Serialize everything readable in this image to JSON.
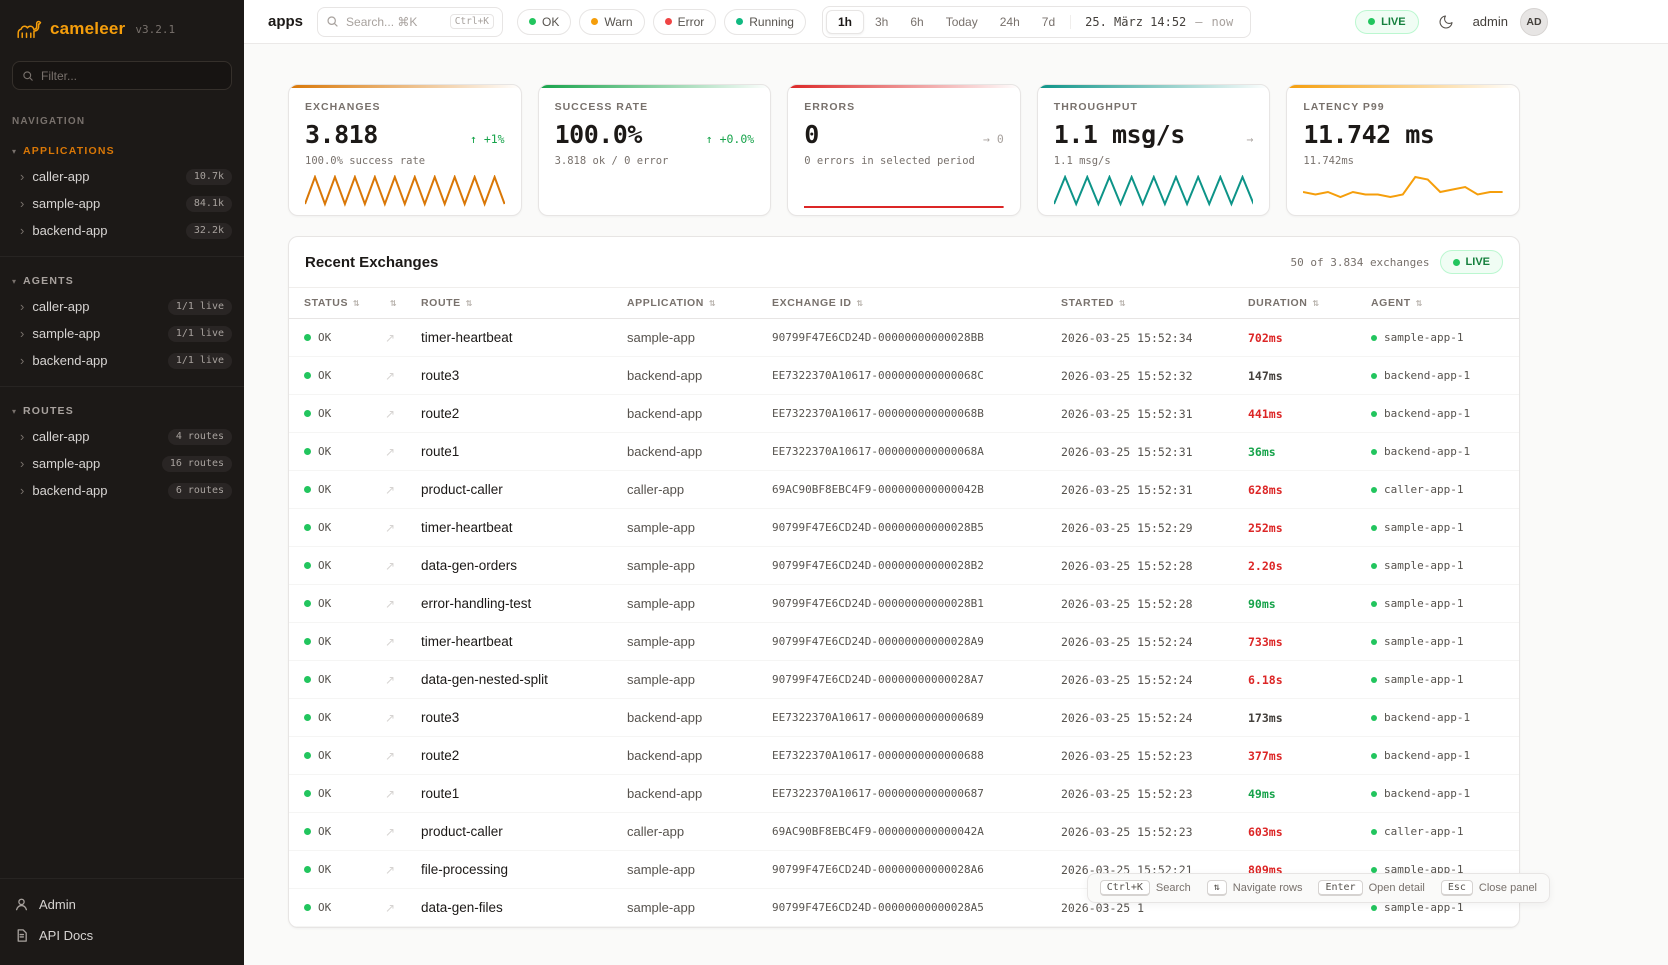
{
  "brand": {
    "name": "cameleer",
    "version": "v3.2.1"
  },
  "sidebar": {
    "filter_placeholder": "Filter...",
    "nav_label": "NAVIGATION",
    "section_caret": "▾",
    "expander_glyph": "›",
    "sections": [
      {
        "title": "APPLICATIONS",
        "items": [
          {
            "label": "caller-app",
            "badge": "10.7k"
          },
          {
            "label": "sample-app",
            "badge": "84.1k"
          },
          {
            "label": "backend-app",
            "badge": "32.2k"
          }
        ]
      },
      {
        "title": "AGENTS",
        "items": [
          {
            "label": "caller-app",
            "badge": "1/1 live"
          },
          {
            "label": "sample-app",
            "badge": "1/1 live"
          },
          {
            "label": "backend-app",
            "badge": "1/1 live"
          }
        ]
      },
      {
        "title": "ROUTES",
        "items": [
          {
            "label": "caller-app",
            "badge": "4 routes"
          },
          {
            "label": "sample-app",
            "badge": "16 routes"
          },
          {
            "label": "backend-app",
            "badge": "6 routes"
          }
        ]
      }
    ],
    "footer": [
      {
        "label": "Admin"
      },
      {
        "label": "API Docs"
      }
    ]
  },
  "topbar": {
    "page_title": "apps",
    "search": {
      "placeholder": "Search... ⌘K",
      "kbd": "Ctrl+K"
    },
    "chips": [
      {
        "label": "OK",
        "color": "#22c55e"
      },
      {
        "label": "Warn",
        "color": "#f59e0b"
      },
      {
        "label": "Error",
        "color": "#ef4444"
      },
      {
        "label": "Running",
        "color": "#10b981"
      }
    ],
    "ranges": [
      {
        "label": "1h",
        "state": "active"
      },
      {
        "label": "3h",
        "state": ""
      },
      {
        "label": "6h",
        "state": ""
      },
      {
        "label": "Today",
        "state": ""
      },
      {
        "label": "24h",
        "state": ""
      },
      {
        "label": "7d",
        "state": ""
      }
    ],
    "time": {
      "value": "25. März 14:52",
      "sep": "—",
      "now": "now"
    },
    "live_label": "LIVE",
    "user": "admin",
    "avatar": "AD"
  },
  "cards": [
    {
      "label": "EXCHANGES",
      "value": "3.818",
      "delta": "↑ +1%",
      "delta_class": "up",
      "sub": "100.0% success rate",
      "accent": "#d97706",
      "spark": [
        2,
        20,
        2,
        20,
        2,
        20,
        2,
        20,
        2,
        20,
        2,
        20,
        2,
        20,
        2,
        20,
        2,
        20,
        2,
        20,
        2
      ],
      "spark_color": "#d97706"
    },
    {
      "label": "SUCCESS RATE",
      "value": "100.0%",
      "delta": "↑ +0.0%",
      "delta_class": "up",
      "sub": "3.818 ok / 0 error",
      "accent": "#16a34a"
    },
    {
      "label": "ERRORS",
      "value": "0",
      "delta": "→ 0",
      "delta_class": "flat",
      "sub": "0 errors in selected period",
      "accent": "#dc2626",
      "spark": [
        0,
        0
      ],
      "spark_color": "#dc2626"
    },
    {
      "label": "THROUGHPUT",
      "value": "1.1 msg/s",
      "delta": "→",
      "delta_class": "flat",
      "sub": "1.1 msg/s",
      "accent": "#0d9488",
      "spark": [
        2,
        20,
        2,
        20,
        2,
        20,
        2,
        20,
        2,
        20,
        2,
        20,
        2,
        20,
        2,
        20,
        2,
        20,
        2
      ],
      "spark_color": "#0d9488"
    },
    {
      "label": "LATENCY P99",
      "value": "11.742 ms",
      "delta": "",
      "delta_class": "",
      "sub": "11.742ms",
      "accent": "#f59e0b",
      "spark": [
        6,
        5,
        6,
        4,
        6,
        5,
        5,
        4,
        5,
        12,
        11,
        6,
        7,
        8,
        5,
        6,
        6
      ],
      "spark_color": "#f59e0b"
    }
  ],
  "table": {
    "title": "Recent Exchanges",
    "meta": "50 of 3.834 exchanges",
    "live_label": "LIVE",
    "sort_glyph": "⇅",
    "open_icon": "↗",
    "columns": [
      {
        "label": "STATUS"
      },
      {
        "label": ""
      },
      {
        "label": "ROUTE"
      },
      {
        "label": "APPLICATION"
      },
      {
        "label": "EXCHANGE ID"
      },
      {
        "label": "STARTED"
      },
      {
        "label": "DURATION"
      },
      {
        "label": "AGENT"
      }
    ],
    "rows": [
      {
        "status": "OK",
        "route": "timer-heartbeat",
        "application": "sample-app",
        "exchange_id": "90799F47E6CD24D-00000000000028BB",
        "started": "2026-03-25 15:52:34",
        "duration": "702ms",
        "duration_class": "bad",
        "agent": "sample-app-1"
      },
      {
        "status": "OK",
        "route": "route3",
        "application": "backend-app",
        "exchange_id": "EE7322370A10617-000000000000068C",
        "started": "2026-03-25 15:52:32",
        "duration": "147ms",
        "duration_class": "neutral",
        "agent": "backend-app-1"
      },
      {
        "status": "OK",
        "route": "route2",
        "application": "backend-app",
        "exchange_id": "EE7322370A10617-000000000000068B",
        "started": "2026-03-25 15:52:31",
        "duration": "441ms",
        "duration_class": "bad",
        "agent": "backend-app-1"
      },
      {
        "status": "OK",
        "route": "route1",
        "application": "backend-app",
        "exchange_id": "EE7322370A10617-000000000000068A",
        "started": "2026-03-25 15:52:31",
        "duration": "36ms",
        "duration_class": "good",
        "agent": "backend-app-1"
      },
      {
        "status": "OK",
        "route": "product-caller",
        "application": "caller-app",
        "exchange_id": "69AC90BF8EBC4F9-000000000000042B",
        "started": "2026-03-25 15:52:31",
        "duration": "628ms",
        "duration_class": "bad",
        "agent": "caller-app-1"
      },
      {
        "status": "OK",
        "route": "timer-heartbeat",
        "application": "sample-app",
        "exchange_id": "90799F47E6CD24D-00000000000028B5",
        "started": "2026-03-25 15:52:29",
        "duration": "252ms",
        "duration_class": "bad",
        "agent": "sample-app-1"
      },
      {
        "status": "OK",
        "route": "data-gen-orders",
        "application": "sample-app",
        "exchange_id": "90799F47E6CD24D-00000000000028B2",
        "started": "2026-03-25 15:52:28",
        "duration": "2.20s",
        "duration_class": "bad",
        "agent": "sample-app-1"
      },
      {
        "status": "OK",
        "route": "error-handling-test",
        "application": "sample-app",
        "exchange_id": "90799F47E6CD24D-00000000000028B1",
        "started": "2026-03-25 15:52:28",
        "duration": "90ms",
        "duration_class": "good",
        "agent": "sample-app-1"
      },
      {
        "status": "OK",
        "route": "timer-heartbeat",
        "application": "sample-app",
        "exchange_id": "90799F47E6CD24D-00000000000028A9",
        "started": "2026-03-25 15:52:24",
        "duration": "733ms",
        "duration_class": "bad",
        "agent": "sample-app-1"
      },
      {
        "status": "OK",
        "route": "data-gen-nested-split",
        "application": "sample-app",
        "exchange_id": "90799F47E6CD24D-00000000000028A7",
        "started": "2026-03-25 15:52:24",
        "duration": "6.18s",
        "duration_class": "bad",
        "agent": "sample-app-1"
      },
      {
        "status": "OK",
        "route": "route3",
        "application": "backend-app",
        "exchange_id": "EE7322370A10617-0000000000000689",
        "started": "2026-03-25 15:52:24",
        "duration": "173ms",
        "duration_class": "neutral",
        "agent": "backend-app-1"
      },
      {
        "status": "OK",
        "route": "route2",
        "application": "backend-app",
        "exchange_id": "EE7322370A10617-0000000000000688",
        "started": "2026-03-25 15:52:23",
        "duration": "377ms",
        "duration_class": "bad",
        "agent": "backend-app-1"
      },
      {
        "status": "OK",
        "route": "route1",
        "application": "backend-app",
        "exchange_id": "EE7322370A10617-0000000000000687",
        "started": "2026-03-25 15:52:23",
        "duration": "49ms",
        "duration_class": "good",
        "agent": "backend-app-1"
      },
      {
        "status": "OK",
        "route": "product-caller",
        "application": "caller-app",
        "exchange_id": "69AC90BF8EBC4F9-000000000000042A",
        "started": "2026-03-25 15:52:23",
        "duration": "603ms",
        "duration_class": "bad",
        "agent": "caller-app-1"
      },
      {
        "status": "OK",
        "route": "file-processing",
        "application": "sample-app",
        "exchange_id": "90799F47E6CD24D-00000000000028A6",
        "started": "2026-03-25 15:52:21",
        "duration": "809ms",
        "duration_class": "bad",
        "agent": "sample-app-1"
      },
      {
        "status": "OK",
        "route": "data-gen-files",
        "application": "sample-app",
        "exchange_id": "90799F47E6CD24D-00000000000028A5",
        "started": "2026-03-25 1",
        "duration": "",
        "duration_class": "neutral",
        "agent": "sample-app-1"
      }
    ]
  },
  "hints": [
    {
      "kbd": "Ctrl+K",
      "label": "Search"
    },
    {
      "kbd": "⇅",
      "label": "Navigate rows"
    },
    {
      "kbd": "Enter",
      "label": "Open detail"
    },
    {
      "kbd": "Esc",
      "label": "Close panel"
    }
  ]
}
